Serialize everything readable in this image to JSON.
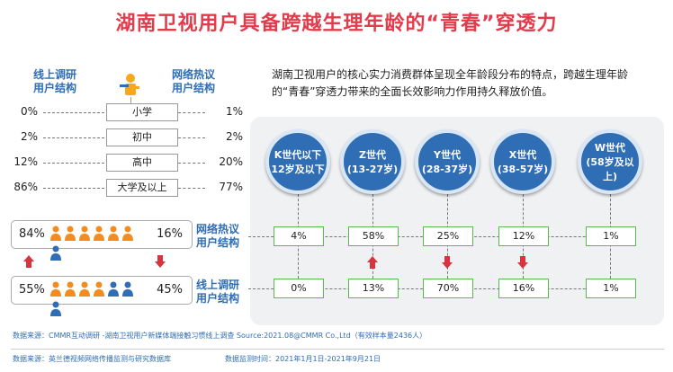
{
  "title": "湖南卫视用户具备跨越生理年龄的“青春”穿透力",
  "left_header": {
    "online": "线上调研\n用户结构",
    "network": "网络热议\n用户结构"
  },
  "description": "湖南卫视用户的核心实力消费群体呈现全年龄段分布的特点，跨越生理年龄的“青春”穿透力带来的全面长效影响力作用持久释放价值。",
  "chart_data": [
    {
      "type": "table",
      "title": "",
      "categories": [
        "小学",
        "初中",
        "高中",
        "大学及以上"
      ],
      "series": [
        {
          "name": "线上调研用户结构",
          "values": [
            "0%",
            "2%",
            "12%",
            "86%"
          ]
        },
        {
          "name": "网络热议用户结构",
          "values": [
            "1%",
            "2%",
            "20%",
            "77%"
          ]
        }
      ]
    },
    {
      "type": "bar",
      "title": "",
      "rows": [
        {
          "name": "网络热议用户结构",
          "female": "84%",
          "male": "16%",
          "female_share": 0.84,
          "male_share": 0.16
        },
        {
          "name": "线上调研用户结构",
          "female": "55%",
          "male": "45%",
          "female_share": 0.55,
          "male_share": 0.45
        }
      ]
    },
    {
      "type": "table",
      "title": "",
      "categories": [
        {
          "name": "K世代以下",
          "age": "12岁及以下"
        },
        {
          "name": "Z世代",
          "age": "(13-27岁)"
        },
        {
          "name": "Y世代",
          "age": "(28-37岁)"
        },
        {
          "name": "X世代",
          "age": "(38-57岁)"
        },
        {
          "name": "W世代",
          "age": "(58岁及以上)"
        }
      ],
      "series": [
        {
          "name": "网络热议用户结构",
          "values": [
            "4%",
            "58%",
            "25%",
            "12%",
            "1%"
          ]
        },
        {
          "name": "线上调研用户结构",
          "values": [
            "0%",
            "13%",
            "70%",
            "16%",
            "1%"
          ]
        }
      ],
      "arrows": [
        "",
        "up",
        "down",
        "down",
        ""
      ]
    }
  ],
  "sources": {
    "line1": "数据来源：CMMR互动调研 -湖南卫视用户新媒体端接触习惯线上调查   Source:2021.08@CMMR Co.,Ltd（有效样本量2436人）",
    "line2_a": "数据来源：英兰德视频网络传播监测与研究数据库",
    "line2_b": "数据监测时间：2021年1月1日-2021年9月21日"
  },
  "colors": {
    "title": "#e23b4c",
    "blue": "#2f6db5",
    "female": "#f28c1f",
    "male": "#2f6db5",
    "green": "#58b94e",
    "arrow": "#d8343f"
  }
}
